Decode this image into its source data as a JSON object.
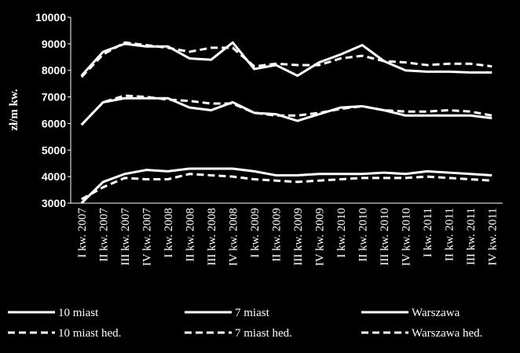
{
  "chart_data": {
    "type": "line",
    "y_label": "zł/m kw.",
    "categories": [
      "I kw. 2007",
      "II kw. 2007",
      "III kw. 2007",
      "IV kw. 2007",
      "I kw. 2008",
      "II kw. 2008",
      "III kw. 2008",
      "IV kw. 2008",
      "I kw. 2009",
      "II kw. 2009",
      "III kw. 2009",
      "IV kw. 2009",
      "I kw. 2010",
      "II kw. 2010",
      "III kw. 2010",
      "IV kw. 2010",
      "I kw. 2011",
      "II kw. 2011",
      "III kw. 2011",
      "IV kw. 2011"
    ],
    "ylim": [
      3000,
      10000
    ],
    "yticks": [
      3000,
      4000,
      5000,
      6000,
      7000,
      8000,
      9000,
      10000
    ],
    "series": [
      {
        "name": "10 miast",
        "color": "#ffffff",
        "dashed": false,
        "values": [
          5950,
          6800,
          6950,
          6950,
          6950,
          6600,
          6500,
          6800,
          6400,
          6350,
          6100,
          6350,
          6600,
          6650,
          6500,
          6300,
          6300,
          6300,
          6300,
          6200
        ]
      },
      {
        "name": "7 miast",
        "color": "#ffffff",
        "dashed": false,
        "values": [
          3000,
          3800,
          4100,
          4250,
          4200,
          4300,
          4300,
          4300,
          4200,
          4050,
          4050,
          4100,
          4100,
          4100,
          4150,
          4100,
          4200,
          4150,
          4100,
          4050
        ]
      },
      {
        "name": "Warszawa",
        "color": "#ffffff",
        "dashed": false,
        "values": [
          7800,
          8700,
          9000,
          8900,
          8900,
          8450,
          8400,
          9050,
          8050,
          8200,
          7800,
          8300,
          8600,
          8950,
          8350,
          8000,
          7950,
          7950,
          7920,
          7920
        ]
      },
      {
        "name": "10 miast hed.",
        "color": "#ffffff",
        "dashed": true,
        "values": [
          5950,
          6800,
          7050,
          7000,
          6900,
          6850,
          6750,
          6750,
          6400,
          6300,
          6300,
          6400,
          6550,
          6650,
          6500,
          6450,
          6450,
          6500,
          6450,
          6300
        ]
      },
      {
        "name": "7 miast hed.",
        "color": "#ffffff",
        "dashed": true,
        "values": [
          3150,
          3600,
          3950,
          3900,
          3900,
          4100,
          4050,
          4000,
          3900,
          3850,
          3800,
          3850,
          3900,
          3950,
          3950,
          3950,
          4000,
          3950,
          3900,
          3850
        ]
      },
      {
        "name": "Warszawa hed.",
        "color": "#ffffff",
        "dashed": true,
        "values": [
          7750,
          8600,
          9050,
          8950,
          8850,
          8700,
          8850,
          8850,
          8150,
          8250,
          8200,
          8200,
          8450,
          8550,
          8350,
          8300,
          8200,
          8250,
          8250,
          8150
        ]
      }
    ]
  }
}
